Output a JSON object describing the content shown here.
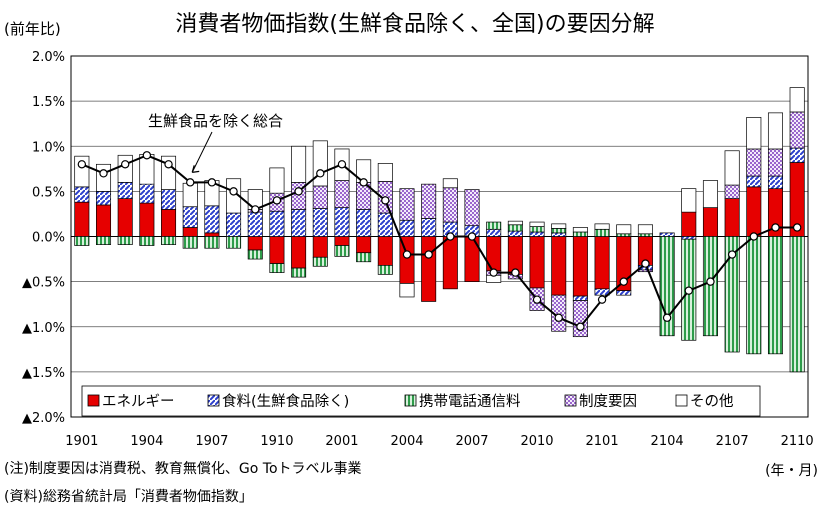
{
  "header": {
    "title": "消費者物価指数(生鮮食品除く、全国)の要因分解",
    "y_unit": "(前年比)",
    "x_unit": "(年・月)"
  },
  "footer": {
    "note": "(注)制度要因は消費税、教育無償化、Go Toトラベル事業",
    "source": "(資料)総務省統計局「消費者物価指数」"
  },
  "chart_data": {
    "type": "bar",
    "stacked": true,
    "ylim": [
      -2.0,
      2.0
    ],
    "y_ticks": [
      "2.0%",
      "1.5%",
      "1.0%",
      "0.5%",
      "0.0%",
      "▲0.5%",
      "▲1.0%",
      "▲1.5%",
      "▲2.0%"
    ],
    "x_tick_labels": [
      "1901",
      "1904",
      "1907",
      "1910",
      "2001",
      "2004",
      "2007",
      "2010",
      "2101",
      "2104",
      "2107",
      "2110"
    ],
    "categories": [
      "1901",
      "1902",
      "1903",
      "1904",
      "1905",
      "1906",
      "1907",
      "1908",
      "1909",
      "1910",
      "1911",
      "1912",
      "2001",
      "2002",
      "2003",
      "2004",
      "2005",
      "2006",
      "2007",
      "2008",
      "2009",
      "2010",
      "2011",
      "2012",
      "2101",
      "2102",
      "2103",
      "2104",
      "2105",
      "2106",
      "2107",
      "2108",
      "2109",
      "2110"
    ],
    "grid": true,
    "legend_position": "bottom-left",
    "colors": {
      "energy": "#e60000",
      "food": "#2b3ecc",
      "mobile": "#2e9c4a",
      "policy": "#9966cc",
      "other": "#ffffff"
    },
    "series": [
      {
        "name": "エネルギー",
        "key": "energy",
        "values": [
          0.38,
          0.35,
          0.42,
          0.37,
          0.3,
          0.1,
          0.04,
          0.0,
          -0.15,
          -0.3,
          -0.35,
          -0.23,
          -0.1,
          -0.18,
          -0.32,
          -0.52,
          -0.72,
          -0.58,
          -0.5,
          -0.38,
          -0.42,
          -0.57,
          -0.65,
          -0.66,
          -0.58,
          -0.6,
          -0.32,
          0.0,
          0.27,
          0.32,
          0.42,
          0.55,
          0.53,
          0.82
        ]
      },
      {
        "name": "食料(生鮮食品除く)",
        "key": "food",
        "values": [
          0.17,
          0.15,
          0.18,
          0.21,
          0.22,
          0.23,
          0.3,
          0.26,
          0.27,
          0.28,
          0.3,
          0.31,
          0.32,
          0.3,
          0.26,
          0.18,
          0.2,
          0.16,
          0.12,
          0.08,
          0.06,
          0.05,
          0.04,
          -0.05,
          -0.07,
          -0.05,
          -0.05,
          0.04,
          -0.03,
          0.0,
          0.0,
          0.12,
          0.14,
          0.16
        ]
      },
      {
        "name": "携帯電話通信料",
        "key": "mobile",
        "values": [
          -0.1,
          -0.09,
          -0.09,
          -0.1,
          -0.09,
          -0.13,
          -0.13,
          -0.13,
          -0.1,
          -0.1,
          -0.1,
          -0.1,
          -0.12,
          -0.1,
          -0.1,
          0.0,
          0.0,
          0.0,
          0.0,
          0.08,
          0.07,
          0.06,
          0.05,
          0.05,
          0.08,
          0.03,
          0.03,
          -1.1,
          -1.12,
          -1.1,
          -1.28,
          -1.3,
          -1.3,
          -1.5
        ]
      },
      {
        "name": "制度要因",
        "key": "policy",
        "values": [
          0.0,
          0.0,
          0.0,
          0.0,
          0.0,
          0.0,
          0.0,
          0.0,
          0.03,
          0.2,
          0.3,
          0.25,
          0.3,
          0.3,
          0.35,
          0.35,
          0.38,
          0.38,
          0.4,
          -0.05,
          -0.05,
          -0.25,
          -0.4,
          -0.4,
          0.0,
          0.0,
          -0.02,
          0.0,
          0.0,
          0.0,
          0.15,
          0.3,
          0.3,
          0.4
        ]
      },
      {
        "name": "その他",
        "key": "other",
        "values": [
          0.34,
          0.3,
          0.3,
          0.33,
          0.37,
          0.26,
          0.28,
          0.38,
          0.22,
          0.28,
          0.4,
          0.5,
          0.35,
          0.25,
          0.2,
          -0.15,
          0.0,
          0.1,
          0.0,
          -0.08,
          0.04,
          0.05,
          0.05,
          0.05,
          0.06,
          0.1,
          0.1,
          0.0,
          0.26,
          0.3,
          0.38,
          0.35,
          0.4,
          0.27
        ]
      },
      {
        "name": "生鮮食品を除く総合",
        "key": "total",
        "type": "line",
        "values": [
          0.8,
          0.7,
          0.8,
          0.9,
          0.8,
          0.6,
          0.6,
          0.5,
          0.3,
          0.4,
          0.5,
          0.7,
          0.8,
          0.6,
          0.4,
          -0.2,
          -0.2,
          -0.0,
          0.0,
          -0.4,
          -0.4,
          -0.7,
          -0.9,
          -1.0,
          -0.7,
          -0.5,
          -0.3,
          -0.9,
          -0.6,
          -0.5,
          -0.2,
          0.0,
          0.1,
          0.1
        ]
      }
    ],
    "annotation": "生鮮食品を除く総合"
  }
}
